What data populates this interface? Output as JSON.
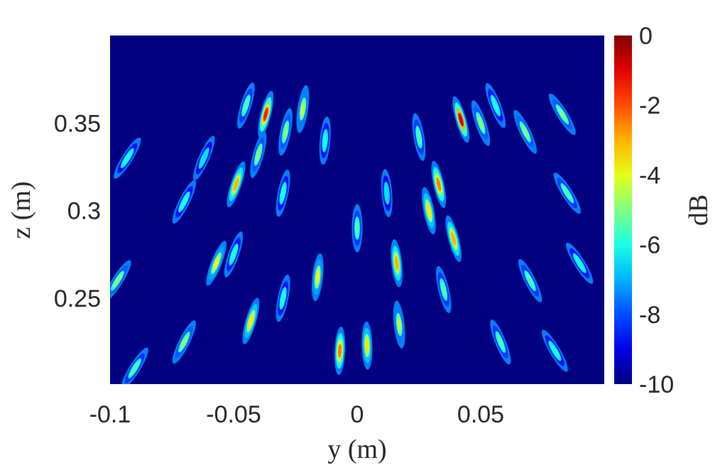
{
  "chart_data": {
    "type": "heatmap",
    "xlabel": "y (m)",
    "ylabel": "z (m)",
    "xlim": [
      -0.1,
      0.1
    ],
    "ylim": [
      0.201,
      0.4
    ],
    "x_ticks": [
      {
        "value": -0.1,
        "label": "-0.1"
      },
      {
        "value": -0.05,
        "label": "-0.05"
      },
      {
        "value": 0,
        "label": "0"
      },
      {
        "value": 0.05,
        "label": "0.05"
      }
    ],
    "y_ticks": [
      {
        "value": 0.25,
        "label": "0.25"
      },
      {
        "value": 0.3,
        "label": "0.3"
      },
      {
        "value": 0.35,
        "label": "0.35"
      }
    ],
    "colorbar": {
      "label": "dB",
      "range": [
        -10,
        0
      ],
      "colormap": "jet",
      "ticks": [
        {
          "value": 0,
          "label": "0"
        },
        {
          "value": -2,
          "label": "-2"
        },
        {
          "value": -4,
          "label": "-4"
        },
        {
          "value": -6,
          "label": "-6"
        },
        {
          "value": -8,
          "label": "-8"
        },
        {
          "value": -10,
          "label": "-10"
        }
      ]
    },
    "background_value_db": -10,
    "grid": false,
    "streaks": [
      {
        "y": -0.037,
        "z": 0.355,
        "peak_db": -1.5
      },
      {
        "y": -0.049,
        "z": 0.315,
        "peak_db": -3.0
      },
      {
        "y": -0.022,
        "z": 0.358,
        "peak_db": -4.5
      },
      {
        "y": -0.045,
        "z": 0.36,
        "peak_db": -5.5
      },
      {
        "y": -0.04,
        "z": 0.332,
        "peak_db": -5.0
      },
      {
        "y": -0.029,
        "z": 0.345,
        "peak_db": -5.0
      },
      {
        "y": -0.013,
        "z": 0.34,
        "peak_db": -6.0
      },
      {
        "y": -0.03,
        "z": 0.31,
        "peak_db": -6.0
      },
      {
        "y": -0.057,
        "z": 0.27,
        "peak_db": -4.0
      },
      {
        "y": -0.05,
        "z": 0.275,
        "peak_db": -6.0
      },
      {
        "y": -0.043,
        "z": 0.237,
        "peak_db": -3.5
      },
      {
        "y": -0.016,
        "z": 0.262,
        "peak_db": -4.0
      },
      {
        "y": -0.007,
        "z": 0.22,
        "peak_db": -2.5
      },
      {
        "y": 0.004,
        "z": 0.223,
        "peak_db": -3.5
      },
      {
        "y": 0.016,
        "z": 0.27,
        "peak_db": -3.0
      },
      {
        "y": 0.017,
        "z": 0.235,
        "peak_db": -4.5
      },
      {
        "y": 0.025,
        "z": 0.342,
        "peak_db": -5.5
      },
      {
        "y": 0.042,
        "z": 0.352,
        "peak_db": -0.8
      },
      {
        "y": 0.033,
        "z": 0.315,
        "peak_db": -2.5
      },
      {
        "y": 0.029,
        "z": 0.3,
        "peak_db": -3.5
      },
      {
        "y": 0.039,
        "z": 0.284,
        "peak_db": -3.0
      },
      {
        "y": 0.05,
        "z": 0.35,
        "peak_db": -5.0
      },
      {
        "y": 0.056,
        "z": 0.36,
        "peak_db": -6.0
      },
      {
        "y": 0.068,
        "z": 0.345,
        "peak_db": -5.0
      },
      {
        "y": 0.083,
        "z": 0.355,
        "peak_db": -5.0
      },
      {
        "y": -0.097,
        "z": 0.26,
        "peak_db": -5.0
      },
      {
        "y": -0.093,
        "z": 0.33,
        "peak_db": -6.0
      },
      {
        "y": -0.07,
        "z": 0.305,
        "peak_db": -6.0
      },
      {
        "y": -0.07,
        "z": 0.225,
        "peak_db": -5.0
      },
      {
        "y": -0.09,
        "z": 0.21,
        "peak_db": -5.5
      },
      {
        "y": 0.085,
        "z": 0.31,
        "peak_db": -5.5
      },
      {
        "y": 0.07,
        "z": 0.26,
        "peak_db": -5.5
      },
      {
        "y": 0.058,
        "z": 0.225,
        "peak_db": -5.5
      },
      {
        "y": 0.08,
        "z": 0.22,
        "peak_db": -6.0
      },
      {
        "y": 0.035,
        "z": 0.255,
        "peak_db": -5.5
      },
      {
        "y": -0.03,
        "z": 0.25,
        "peak_db": -6.0
      },
      {
        "y": 0.0,
        "z": 0.29,
        "peak_db": -5.5
      },
      {
        "y": -0.062,
        "z": 0.33,
        "peak_db": -6.5
      },
      {
        "y": 0.012,
        "z": 0.31,
        "peak_db": -6.5
      },
      {
        "y": 0.09,
        "z": 0.27,
        "peak_db": -6.0
      }
    ]
  }
}
